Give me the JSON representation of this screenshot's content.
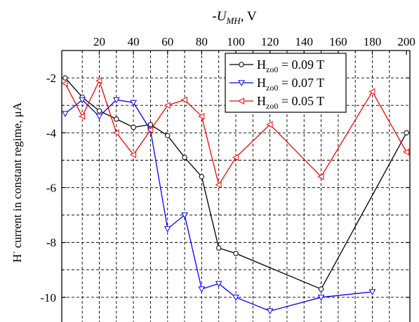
{
  "chart_data": {
    "type": "line",
    "xlabel_main": "-U",
    "xlabel_sub": "MH",
    "xlabel_unit": ", V",
    "ylabel": "H",
    "ylabel_sup": "-",
    "ylabel_rest": " current in constant regime, μA",
    "xlim": [
      -2,
      202
    ],
    "ylim": [
      -10.9,
      -1.0
    ],
    "x_ticks": [
      20,
      40,
      60,
      80,
      100,
      120,
      140,
      160,
      180,
      200
    ],
    "x_tick_labels": [
      "20",
      "40",
      "60",
      "80",
      "100",
      "120",
      "140",
      "160",
      "180",
      "200"
    ],
    "y_ticks": [
      -2,
      -4,
      -6,
      -8,
      -10
    ],
    "y_tick_labels": [
      "-2",
      "-4",
      "-6",
      "-8",
      "-10"
    ],
    "x_minor_ticks": [
      10,
      30,
      50,
      70,
      90,
      110,
      130,
      150,
      170,
      190
    ],
    "y_minor_ticks": [
      -1,
      -3,
      -5,
      -7,
      -9
    ],
    "grid": true,
    "legend_position": "top-right",
    "series": [
      {
        "name": "H",
        "name_sub": "zo0",
        "name_rest": " = 0.09 T",
        "color": "#000000",
        "marker": "circle",
        "x": [
          0,
          10,
          20,
          30,
          40,
          50,
          60,
          70,
          80,
          90,
          100,
          150,
          200
        ],
        "y": [
          -2.0,
          -2.7,
          -3.2,
          -3.5,
          -3.8,
          -3.7,
          -4.1,
          -4.9,
          -5.6,
          -8.2,
          -8.4,
          -9.7,
          -4.0
        ]
      },
      {
        "name": "H",
        "name_sub": "zo0",
        "name_rest": " = 0.07 T",
        "color": "#0000ff",
        "marker": "triangle-down",
        "x": [
          0,
          10,
          20,
          30,
          40,
          50,
          60,
          70,
          80,
          90,
          100,
          120,
          150,
          180
        ],
        "y": [
          -3.3,
          -2.8,
          -3.4,
          -2.8,
          -2.9,
          -3.9,
          -7.5,
          -7.0,
          -9.7,
          -9.5,
          -10.0,
          -10.5,
          -10.0,
          -9.8
        ]
      },
      {
        "name": "H",
        "name_sub": "zo0",
        "name_rest": " = 0.05 T",
        "color": "#ff0000",
        "marker": "triangle-left",
        "x": [
          0,
          10,
          20,
          30,
          40,
          50,
          60,
          70,
          80,
          90,
          100,
          120,
          150,
          180,
          200
        ],
        "y": [
          -2.2,
          -3.4,
          -2.1,
          -4.0,
          -4.8,
          -3.9,
          -3.0,
          -2.8,
          -3.4,
          -5.9,
          -4.9,
          -3.7,
          -5.6,
          -2.5,
          -4.7
        ]
      }
    ]
  }
}
